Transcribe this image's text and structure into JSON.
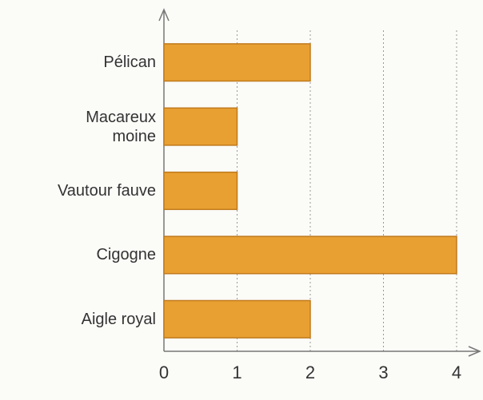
{
  "chart_data": {
    "type": "bar",
    "orientation": "horizontal",
    "categories": [
      "Pélican",
      "Macareux moine",
      "Vautour fauve",
      "Cigogne",
      "Aigle royal"
    ],
    "values": [
      2,
      1,
      1,
      4,
      2
    ],
    "color": "#e9a032",
    "xlim": [
      0,
      4
    ],
    "xticks": [
      0,
      1,
      2,
      3,
      4
    ],
    "grid": true
  }
}
